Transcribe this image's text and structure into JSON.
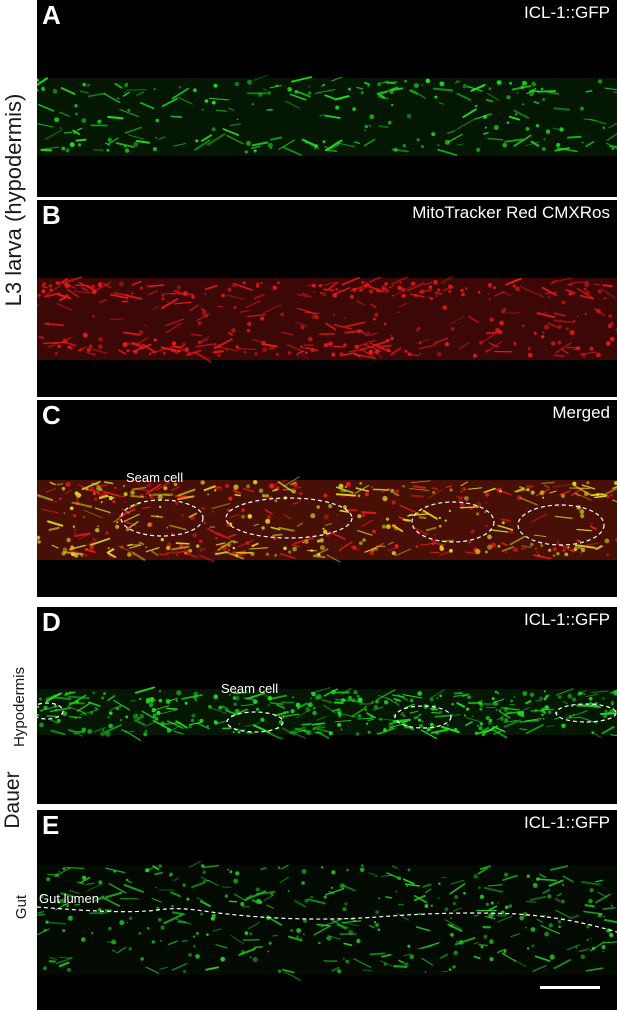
{
  "side_labels": {
    "l3": "L3 larva (hypodermis)",
    "dauer": "Dauer",
    "hypodermis": "Hypodermis",
    "gut": "Gut"
  },
  "panels": [
    {
      "letter": "A",
      "channel": "ICL-1::GFP",
      "color": "#22dd22"
    },
    {
      "letter": "B",
      "channel": "MitoTracker Red CMXRos",
      "color": "#ee1a1a"
    },
    {
      "letter": "C",
      "channel": "Merged",
      "color": "#d8d820",
      "annotation": "Seam cell"
    },
    {
      "letter": "D",
      "channel": "ICL-1::GFP",
      "color": "#22dd22",
      "annotation": "Seam cell"
    },
    {
      "letter": "E",
      "channel": "ICL-1::GFP",
      "color": "#22cc22",
      "annotation": "Gut lumen"
    }
  ]
}
